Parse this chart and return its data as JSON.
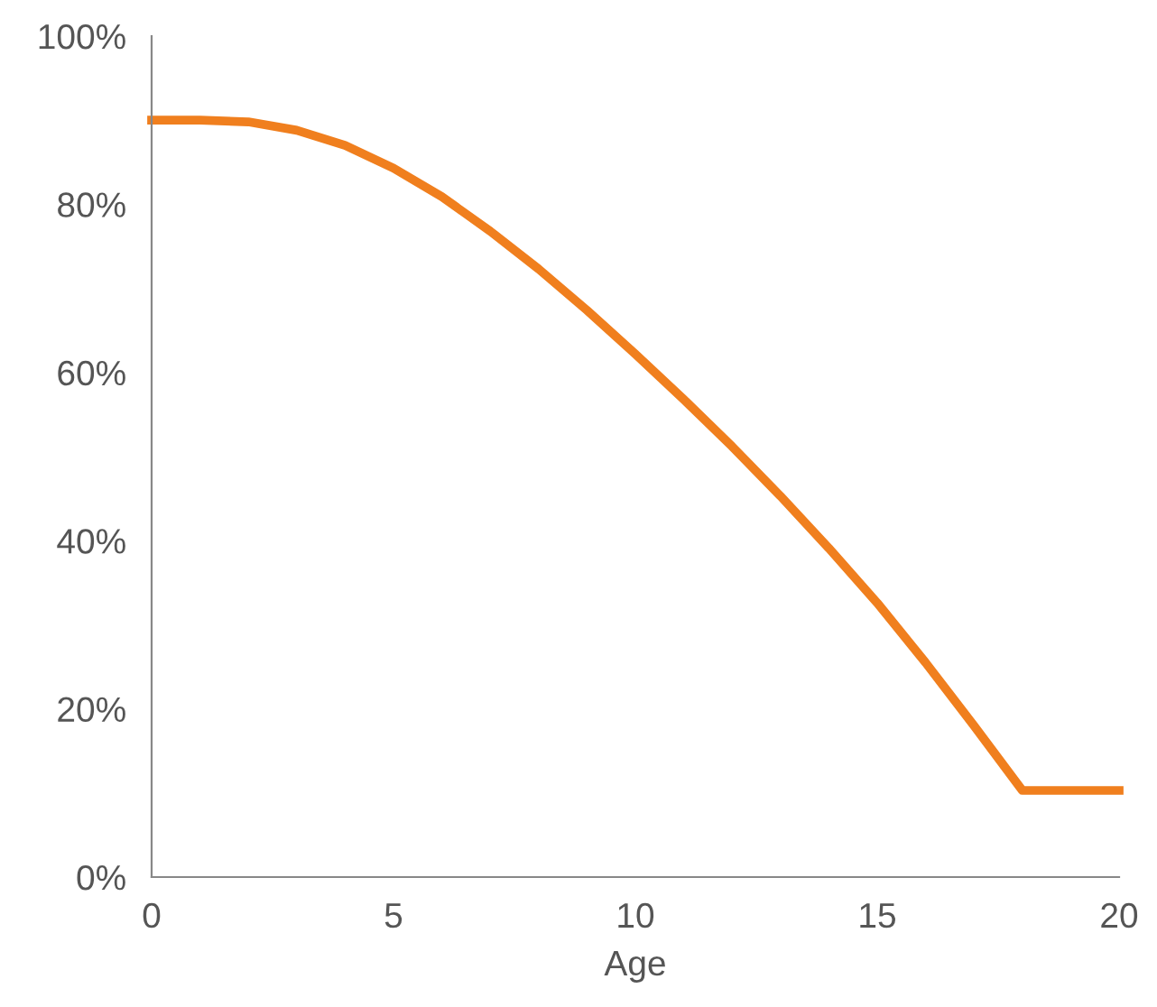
{
  "chart_data": {
    "type": "line",
    "xlabel": "Age",
    "x": [
      0,
      1,
      2,
      3,
      4,
      5,
      6,
      7,
      8,
      9,
      10,
      11,
      12,
      13,
      14,
      15,
      16,
      17,
      18,
      19,
      20
    ],
    "series": [
      {
        "color": "#f07f1e",
        "values": [
          0.9,
          0.9,
          0.898,
          0.888,
          0.87,
          0.843,
          0.809,
          0.768,
          0.723,
          0.674,
          0.622,
          0.568,
          0.512,
          0.453,
          0.391,
          0.326,
          0.255,
          0.18,
          0.103,
          0.103,
          0.103
        ]
      }
    ],
    "xlim": [
      0,
      20
    ],
    "xticks": [
      0,
      5,
      10,
      15,
      20
    ],
    "ylim": [
      0,
      1
    ],
    "yticks": [
      {
        "value": 0,
        "label": "0%"
      },
      {
        "value": 0.2,
        "label": "20%"
      },
      {
        "value": 0.4,
        "label": "40%"
      },
      {
        "value": 0.6,
        "label": "60%"
      },
      {
        "value": 0.8,
        "label": "80%"
      },
      {
        "value": 1,
        "label": "100%"
      }
    ],
    "grid": false,
    "legend": false,
    "marker": "none",
    "line_style": "solid"
  }
}
